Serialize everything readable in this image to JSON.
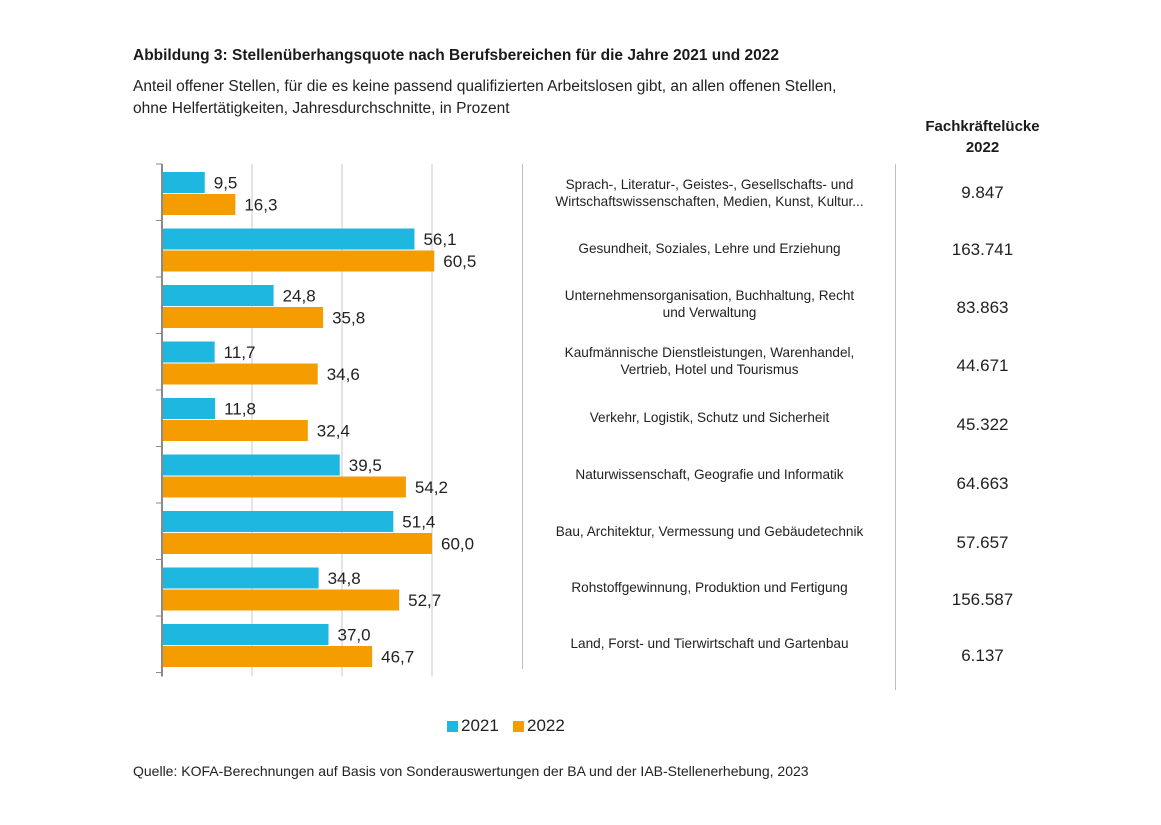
{
  "chart_data": {
    "type": "bar",
    "orientation": "horizontal",
    "title": "Abbildung 3: Stellenüberhangsquote nach Berufsbereichen für die Jahre 2021 und 2022",
    "subtitle_lines": [
      "Anteil offener Stellen, für die es keine passend qualifizierten Arbeitslosen gibt, an allen offenen Stellen,",
      "ohne Helfertätigkeiten, Jahresdurchschnitte, in Prozent"
    ],
    "categories": [
      [
        "Sprach-, Literatur-, Geistes-, Gesellschafts- und",
        "Wirtschaftswissenschaften, Medien, Kunst, Kultur..."
      ],
      [
        "Gesundheit, Soziales, Lehre und Erziehung"
      ],
      [
        "Unternehmensorganisation, Buchhaltung, Recht",
        "und Verwaltung"
      ],
      [
        "Kaufmännische Dienstleistungen, Warenhandel,",
        "Vertrieb, Hotel und Tourismus"
      ],
      [
        "Verkehr, Logistik, Schutz und Sicherheit"
      ],
      [
        "Naturwissenschaft, Geografie und Informatik"
      ],
      [
        "Bau, Architektur, Vermessung und Gebäudetechnik"
      ],
      [
        "Rohstoffgewinnung, Produktion und Fertigung"
      ],
      [
        "Land, Forst- und Tierwirtschaft und Gartenbau"
      ]
    ],
    "series": [
      {
        "name": "2021",
        "color": "#1db7df",
        "values": [
          9.5,
          56.1,
          24.8,
          11.7,
          11.8,
          39.5,
          51.4,
          34.8,
          37.0
        ],
        "labels": [
          "9,5",
          "56,1",
          "24,8",
          "11,7",
          "11,8",
          "39,5",
          "51,4",
          "34,8",
          "37,0"
        ]
      },
      {
        "name": "2022",
        "color": "#f59c00",
        "values": [
          16.3,
          60.5,
          35.8,
          34.6,
          32.4,
          54.2,
          60.0,
          52.7,
          46.7
        ],
        "labels": [
          "16,3",
          "60,5",
          "35,8",
          "34,6",
          "32,4",
          "54,2",
          "60,0",
          "52,7",
          "46,7"
        ]
      }
    ],
    "xlim": [
      0,
      80
    ],
    "grid": true,
    "legend": "bottom-center",
    "right_column": {
      "header_lines": [
        "Fachkräftelücke",
        "2022"
      ],
      "values": [
        "9.847",
        "163.741",
        "83.863",
        "44.671",
        "45.322",
        "64.663",
        "57.657",
        "156.587",
        "6.137"
      ]
    }
  },
  "source": "Quelle: KOFA-Berechnungen auf Basis von Sonderauswertungen der BA und der IAB-Stellenerhebung, 2023",
  "colors": {
    "series_2021": "#1db7df",
    "series_2022": "#f59c00",
    "grid": "#c9c9c9",
    "axis": "#8a8a8a"
  }
}
